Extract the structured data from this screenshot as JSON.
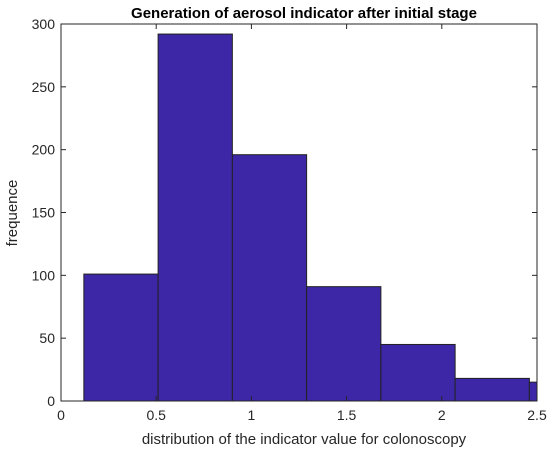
{
  "chart_data": {
    "type": "bar",
    "title": "Generation of aerosol indicator after initial stage",
    "xlabel": "distribution of the indicator value for colonoscopy",
    "ylabel": "frequence",
    "xlim": [
      0,
      2.5
    ],
    "ylim": [
      0,
      300
    ],
    "x_ticks": [
      "0",
      "0.5",
      "1",
      "1.5",
      "2",
      "2.5"
    ],
    "y_ticks": [
      "0",
      "50",
      "100",
      "150",
      "200",
      "250",
      "300"
    ],
    "bin_edges": [
      0.12,
      0.51,
      0.9,
      1.29,
      1.68,
      2.07,
      2.46,
      2.5
    ],
    "values": [
      101,
      292,
      196,
      91,
      45,
      18,
      15
    ],
    "bar_color": "#3d27a6",
    "edge_color": "#222222",
    "grid": false,
    "legend": "none"
  }
}
